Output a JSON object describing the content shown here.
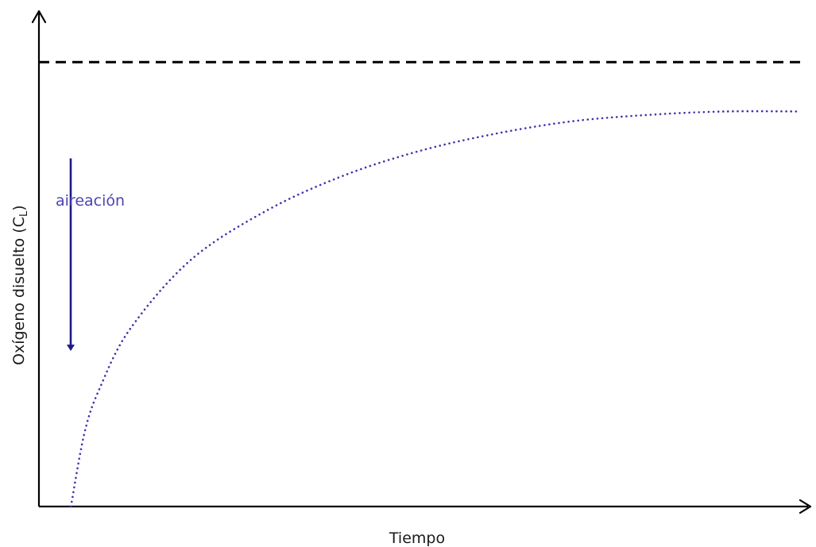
{
  "chart_data": {
    "type": "line",
    "title": "",
    "xlabel": "Tiempo",
    "ylabel": {
      "main": "Oxígeno disuelto (C",
      "subscript": "L",
      "closing": ")"
    },
    "axis_style": "arrows-without-ticks",
    "xlim": [
      0,
      1
    ],
    "ylim": [
      0,
      1
    ],
    "grid": false,
    "legend": "none",
    "reference_line": {
      "style": "dashed",
      "y": 0.9,
      "label": ""
    },
    "series": [
      {
        "style": "dotted",
        "model": "saturation-curve",
        "x": [
          0.042,
          0.06,
          0.08,
          0.12,
          0.2,
          0.3,
          0.4,
          0.5,
          0.6,
          0.7,
          0.8,
          0.9,
          1.0
        ],
        "y": [
          0.0,
          0.15,
          0.24,
          0.36,
          0.5,
          0.6,
          0.67,
          0.72,
          0.755,
          0.78,
          0.793,
          0.8,
          0.8
        ]
      }
    ],
    "annotations": [
      {
        "text": "aireación",
        "arrow_direction": "down",
        "arrow_from_y": 0.705,
        "arrow_to_y": 0.315
      }
    ]
  },
  "colors": {
    "axis": "#000000",
    "curve": "#3c35ad",
    "annotation_text": "#4b45b0",
    "annotation_arrow": "#1c1a86"
  }
}
